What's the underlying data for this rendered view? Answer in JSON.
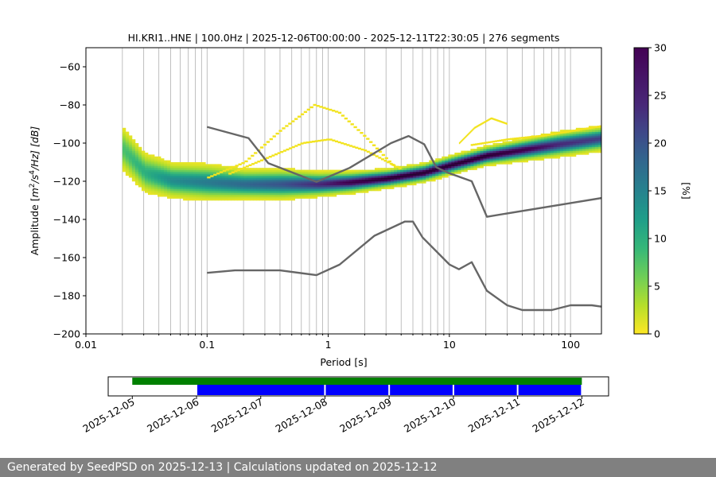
{
  "footer": {
    "text": "Generated by SeedPSD on 2025-12-13 | Calculations updated on 2025-12-12"
  },
  "colorbar": {
    "label": "[%]",
    "range": [
      0,
      30
    ],
    "ticks": [
      "0",
      "5",
      "10",
      "15",
      "20",
      "25",
      "30"
    ],
    "colormap": "viridis_r"
  },
  "chart_data": [
    {
      "type": "heatmap",
      "title": "HI.KRI1..HNE | 100.0Hz | 2025-12-06T00:00:00 - 2025-12-11T22:30:05 | 276 segments",
      "xlabel": "Period [s]",
      "ylabel_parts": {
        "prefix": "Amplitude [",
        "base1": "m",
        "sup1": "2",
        "mid": "/s",
        "sup2": "4",
        "suffix": "/Hz] [dB]"
      },
      "x_scale": "log",
      "xlim": [
        0.01,
        180
      ],
      "ylim": [
        -200,
        -50
      ],
      "x_ticks": [
        {
          "value": 0.01,
          "label": "0.01"
        },
        {
          "value": 0.1,
          "label": "0.1"
        },
        {
          "value": 1,
          "label": "1"
        },
        {
          "value": 10,
          "label": "10"
        },
        {
          "value": 100,
          "label": "100"
        }
      ],
      "y_ticks": [
        {
          "value": -60,
          "label": "−60"
        },
        {
          "value": -80,
          "label": "−80"
        },
        {
          "value": -100,
          "label": "−100"
        },
        {
          "value": -120,
          "label": "−120"
        },
        {
          "value": -140,
          "label": "−140"
        },
        {
          "value": -160,
          "label": "−160"
        },
        {
          "value": -180,
          "label": "−180"
        },
        {
          "value": -200,
          "label": "−200"
        }
      ],
      "grid": "x-minor-and-major",
      "density_ridge": {
        "period": [
          0.02,
          0.03,
          0.05,
          0.1,
          0.2,
          0.4,
          0.8,
          1.5,
          3,
          6,
          10,
          20,
          40,
          80,
          180
        ],
        "mode_db": [
          -104,
          -116,
          -120,
          -121,
          -122,
          -122,
          -122,
          -121,
          -119,
          -116,
          -112,
          -107,
          -104,
          -101,
          -98
        ],
        "spread_db": [
          8,
          7,
          6,
          6,
          5,
          5,
          4,
          3.5,
          3,
          3,
          3,
          3,
          3.5,
          4,
          4
        ],
        "peak_percent": [
          8,
          10,
          14,
          16,
          18,
          20,
          24,
          28,
          30,
          30,
          30,
          30,
          28,
          24,
          22
        ]
      },
      "outlier_arcs": [
        {
          "period": [
            0.1,
            0.2,
            0.4,
            0.75,
            1.2,
            2,
            3.5
          ],
          "amplitude_db": [
            -118,
            -110,
            -93,
            -80,
            -84,
            -97,
            -113
          ]
        },
        {
          "period": [
            0.15,
            0.3,
            0.6,
            1,
            2,
            4
          ],
          "amplitude_db": [
            -116,
            -108,
            -100,
            -98,
            -104,
            -114
          ]
        },
        {
          "period": [
            12,
            16,
            22,
            30
          ],
          "amplitude_db": [
            -100,
            -92,
            -87,
            -90
          ]
        },
        {
          "period": [
            15,
            30,
            60,
            180
          ],
          "amplitude_db": [
            -101,
            -98,
            -96,
            -91
          ]
        }
      ],
      "series": [
        {
          "name": "",
          "period": [
            0.1,
            0.22,
            0.32,
            0.8,
            1.5,
            3.3,
            4.6,
            6.2,
            7.8,
            9.8,
            15.3,
            20.4,
            180
          ],
          "amplitude_db": [
            -91.5,
            -97.4,
            -110.5,
            -120.3,
            -113,
            -100,
            -96.3,
            -100.6,
            -112.7,
            -115.6,
            -120,
            -138.6,
            -128.8
          ]
        },
        {
          "name": "",
          "period": [
            0.1,
            0.17,
            0.4,
            0.8,
            1.24,
            2.4,
            4.3,
            5.0,
            6.0,
            10,
            12,
            15.3,
            20.4,
            30,
            40,
            70,
            100,
            150,
            180
          ],
          "amplitude_db": [
            -168,
            -166.7,
            -166.7,
            -169.2,
            -163.7,
            -148.6,
            -141.1,
            -141.1,
            -149.4,
            -163.6,
            -166.1,
            -162.4,
            -177.4,
            -185,
            -187.5,
            -187.5,
            -185,
            -185,
            -185.7
          ]
        }
      ]
    },
    {
      "type": "bar",
      "x_ticks": [
        "2025-12-05",
        "2025-12-06",
        "2025-12-07",
        "2025-12-08",
        "2025-12-09",
        "2025-12-10",
        "2025-12-11",
        "2025-12-12"
      ],
      "xlim": [
        "2025-12-04T15:00",
        "2025-12-12T10:00"
      ],
      "green_range": [
        "2025-12-05T00:00",
        "2025-12-12T00:00"
      ],
      "blue_segments": [
        [
          "2025-12-06T00:00",
          "2025-12-08T00:00"
        ],
        [
          "2025-12-08T00:00",
          "2025-12-09T00:00"
        ],
        [
          "2025-12-09T00:00",
          "2025-12-10T00:00"
        ],
        [
          "2025-12-10T00:00",
          "2025-12-11T00:00"
        ],
        [
          "2025-12-11T00:00",
          "2025-12-12T00:00"
        ]
      ],
      "colors": {
        "green": "#008000",
        "blue": "#0000ff"
      }
    }
  ]
}
